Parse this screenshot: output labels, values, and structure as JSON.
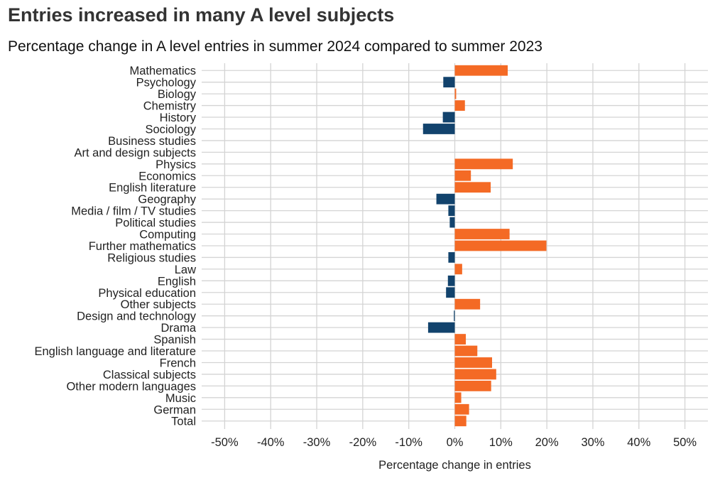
{
  "title": "Entries increased in many A level subjects",
  "subtitle": "Percentage change in A level entries in summer 2024 compared to summer 2023",
  "colors": {
    "increase": "#f46a25",
    "decrease": "#12436d",
    "grid": "#d4d4d4",
    "text": "#222222"
  },
  "chart_data": {
    "type": "bar",
    "orientation": "horizontal",
    "title": "Entries increased in many A level subjects",
    "subtitle": "Percentage change in A level entries in summer 2024 compared to summer 2023",
    "xlabel": "Percentage change in entries",
    "ylabel": "",
    "xlim": [
      -55,
      55
    ],
    "x_ticks": [
      -50,
      -40,
      -30,
      -20,
      -10,
      0,
      10,
      20,
      30,
      40,
      50
    ],
    "x_tick_labels": [
      "-50%",
      "-40%",
      "-30%",
      "-20%",
      "-10%",
      "0%",
      "10%",
      "20%",
      "30%",
      "40%",
      "50%"
    ],
    "grid": true,
    "legend": "none",
    "categories": [
      "Mathematics",
      "Psychology",
      "Biology",
      "Chemistry",
      "History",
      "Sociology",
      "Business studies",
      "Art and design subjects",
      "Physics",
      "Economics",
      "English literature",
      "Geography",
      "Media / film / TV studies",
      "Political studies",
      "Computing",
      "Further mathematics",
      "Religious studies",
      "Law",
      "English",
      "Physical education",
      "Other subjects",
      "Design and technology",
      "Drama",
      "Spanish",
      "English language and literature",
      "French",
      "Classical subjects",
      "Other modern languages",
      "Music",
      "German",
      "Total"
    ],
    "values": [
      11.5,
      -2.5,
      0.3,
      2.2,
      -2.6,
      -6.9,
      0.0,
      0.0,
      12.6,
      3.5,
      7.8,
      -4.0,
      -1.4,
      -1.1,
      11.9,
      19.9,
      -1.4,
      1.6,
      -1.5,
      -1.9,
      5.5,
      -0.2,
      -5.8,
      2.4,
      4.9,
      8.1,
      9.0,
      7.9,
      1.4,
      3.1,
      2.5
    ]
  }
}
